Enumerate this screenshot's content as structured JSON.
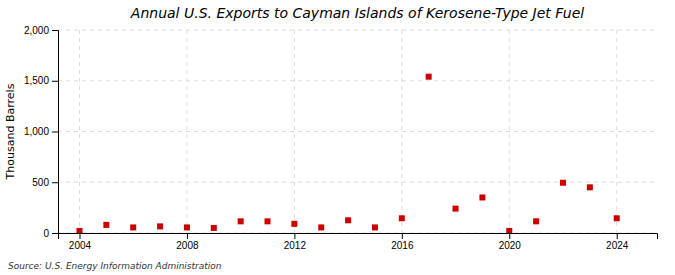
{
  "chart_data": {
    "type": "scatter",
    "title": "Annual U.S. Exports to Cayman Islands of Kerosene-Type Jet Fuel",
    "ylabel": "Thousand Barrels",
    "source": "Source: U.S. Energy Information Administration",
    "x": [
      2004,
      2005,
      2006,
      2007,
      2008,
      2009,
      2010,
      2011,
      2012,
      2013,
      2014,
      2015,
      2016,
      2017,
      2018,
      2019,
      2020,
      2021,
      2022,
      2023,
      2024
    ],
    "values": [
      20,
      80,
      55,
      65,
      55,
      50,
      115,
      115,
      90,
      55,
      125,
      55,
      145,
      1540,
      240,
      350,
      20,
      115,
      495,
      450,
      145
    ],
    "color": "#cc0000",
    "marker": "square",
    "xlim": [
      2003.2,
      2025.5
    ],
    "xticks": [
      2004,
      2008,
      2012,
      2016,
      2020,
      2024
    ],
    "ylim": [
      0,
      2000
    ],
    "yticks": [
      0,
      500,
      {
        "value": 1000,
        "label": "1,000"
      },
      {
        "value": 1500,
        "label": "1,500"
      },
      {
        "value": 2000,
        "label": "2,000"
      }
    ],
    "grid": true
  }
}
